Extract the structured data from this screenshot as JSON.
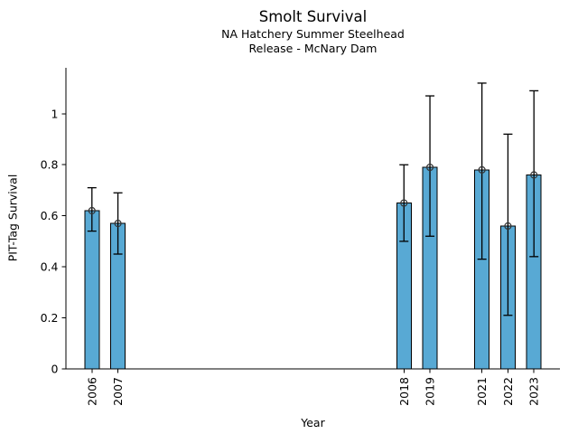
{
  "title": "Smolt Survival",
  "subtitle_line1": "NA Hatchery Summer Steelhead",
  "subtitle_line2": "Release - McNary Dam",
  "chart_data": {
    "type": "bar",
    "title": "Smolt Survival",
    "subtitle": [
      "NA Hatchery Summer Steelhead",
      "Release - McNary Dam"
    ],
    "xlabel": "Year",
    "ylabel": "PIT-Tag Survival",
    "grid": false,
    "legend": "none",
    "xlim": [
      2005,
      2024
    ],
    "ylim": [
      0,
      1.18
    ],
    "x_ticks": [
      2006,
      2007,
      2018,
      2019,
      2021,
      2022,
      2023
    ],
    "x_tick_labels": [
      "2006",
      "2007",
      "2018",
      "2019",
      "2021",
      "2022",
      "2023"
    ],
    "y_ticks": [
      0,
      0.2,
      0.4,
      0.6,
      0.8,
      1
    ],
    "y_tick_labels": [
      "0",
      "0.2",
      "0.4",
      "0.6",
      "0.8",
      "1"
    ],
    "bar_color": "#58A9D4",
    "bar_edge_color": "#000000",
    "error_bar_color": "#000000",
    "marker": "open-circle",
    "marker_color": "#333333",
    "series": [
      {
        "year": 2006,
        "value": 0.62,
        "ci_low": 0.54,
        "ci_high": 0.71
      },
      {
        "year": 2007,
        "value": 0.57,
        "ci_low": 0.45,
        "ci_high": 0.69
      },
      {
        "year": 2018,
        "value": 0.65,
        "ci_low": 0.5,
        "ci_high": 0.8
      },
      {
        "year": 2019,
        "value": 0.79,
        "ci_low": 0.52,
        "ci_high": 1.07
      },
      {
        "year": 2021,
        "value": 0.78,
        "ci_low": 0.43,
        "ci_high": 1.12
      },
      {
        "year": 2022,
        "value": 0.56,
        "ci_low": 0.21,
        "ci_high": 0.92
      },
      {
        "year": 2023,
        "value": 0.76,
        "ci_low": 0.44,
        "ci_high": 1.09
      }
    ]
  }
}
